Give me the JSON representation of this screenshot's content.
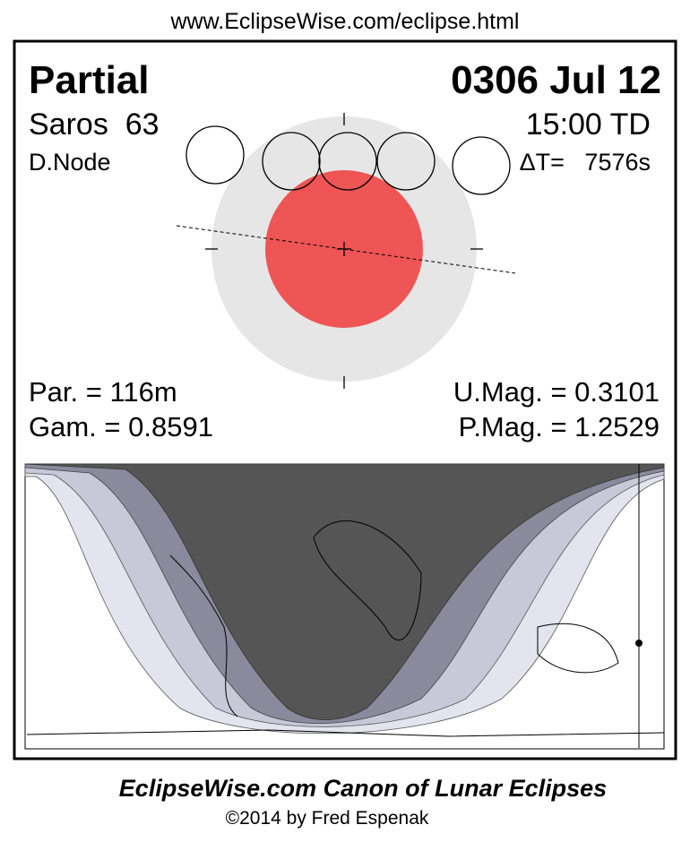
{
  "header": {
    "url": "www.EclipseWise.com/eclipse.html"
  },
  "eclipse": {
    "type": "Partial",
    "date": "0306 Jul 12",
    "saros": "Saros  63",
    "time": "15:00 TD",
    "node": "D.Node",
    "delta_t": "ΔT=   7576s",
    "duration": "Par. = 116m",
    "umbral_magnitude": "U.Mag. = 0.3101",
    "gamma": "Gam. = 0.8591",
    "penumbral_magnitude": "P.Mag. = 1.2529"
  },
  "footer": {
    "title": "EclipseWise.com Canon of Lunar Eclipses",
    "credit": "©2014 by Fred Espenak"
  }
}
